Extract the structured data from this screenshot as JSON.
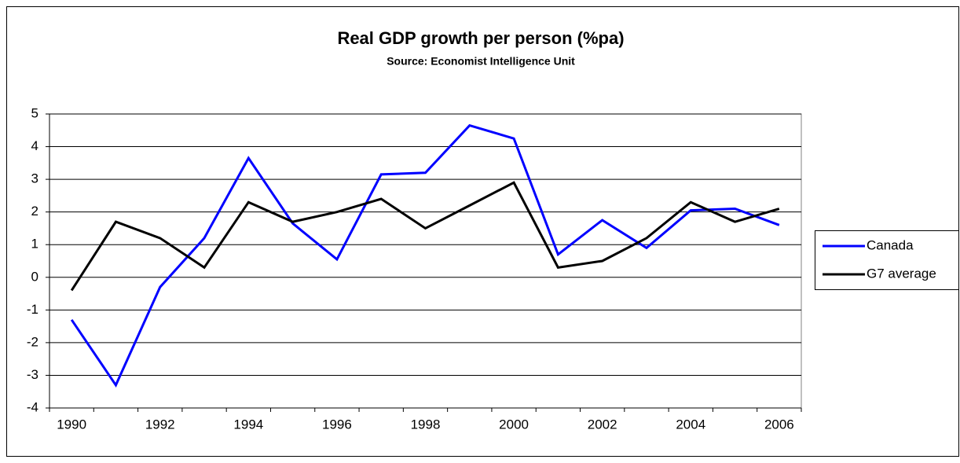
{
  "chart_data": {
    "type": "line",
    "title": "Real GDP growth per person (%pa)",
    "subtitle": "Source: Economist Intelligence Unit",
    "categories": [
      "1990",
      null,
      "1992",
      null,
      "1994",
      null,
      "1996",
      null,
      "1998",
      null,
      "2000",
      null,
      "2002",
      null,
      "2004",
      null,
      "2006"
    ],
    "series": [
      {
        "name": "Canada",
        "color": "#0000ff",
        "values": [
          -1.3,
          -3.3,
          -0.3,
          1.2,
          3.65,
          1.65,
          0.55,
          3.15,
          3.2,
          4.65,
          4.25,
          0.7,
          1.75,
          0.9,
          2.05,
          2.1,
          1.6
        ]
      },
      {
        "name": "G7 average",
        "color": "#000000",
        "values": [
          -0.4,
          1.7,
          1.2,
          0.3,
          2.3,
          1.7,
          2.0,
          2.4,
          1.5,
          2.2,
          2.9,
          0.3,
          0.5,
          1.2,
          2.3,
          1.7,
          2.1
        ]
      }
    ],
    "ylim": [
      -4,
      5
    ],
    "yticks": [
      -4,
      -3,
      -2,
      -1,
      0,
      1,
      2,
      3,
      4,
      5
    ],
    "grid": true,
    "legend": "right"
  }
}
